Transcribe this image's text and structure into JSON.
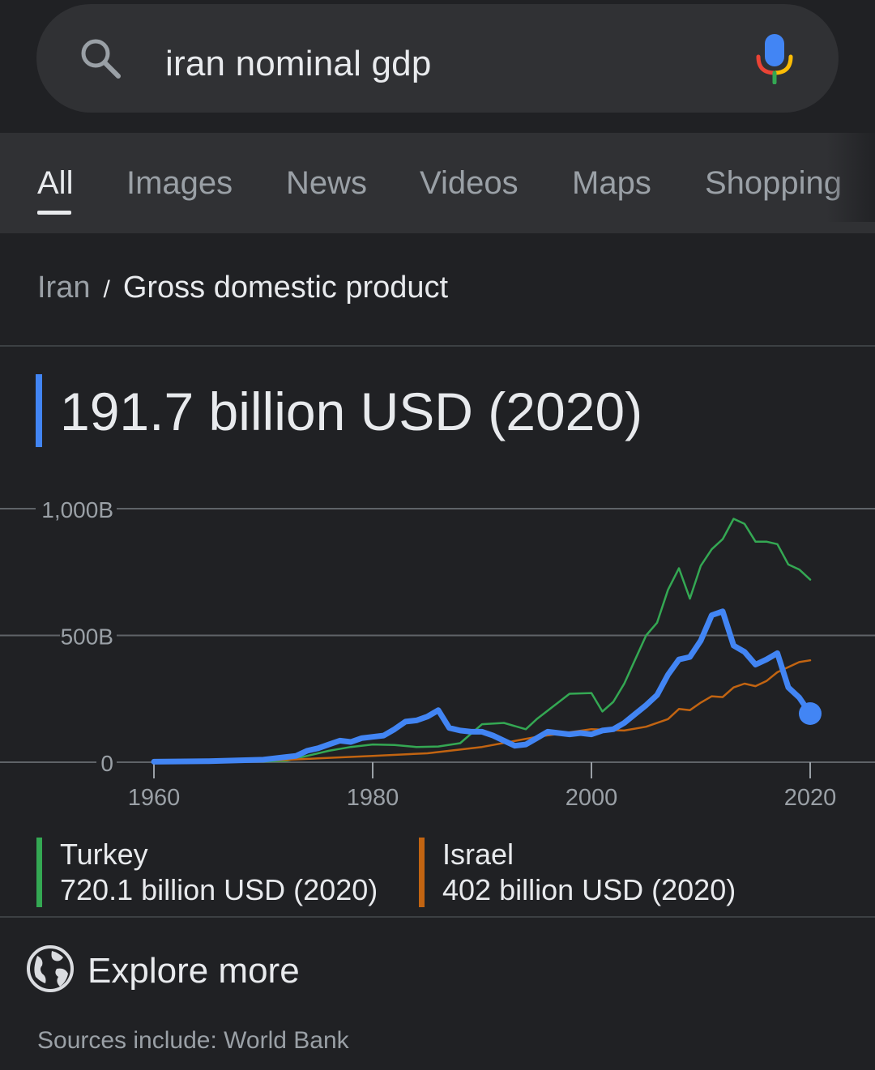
{
  "search": {
    "query": "iran nominal gdp"
  },
  "tabs": [
    {
      "label": "All"
    },
    {
      "label": "Images"
    },
    {
      "label": "News"
    },
    {
      "label": "Videos"
    },
    {
      "label": "Maps"
    },
    {
      "label": "Shopping"
    }
  ],
  "breadcrumb": {
    "parent": "Iran",
    "separator": "/",
    "current": "Gross domestic product"
  },
  "headline": {
    "value": "191.7 billion USD (2020)"
  },
  "colors": {
    "iran": "#4285f4",
    "turkey": "#34a853",
    "israel": "#c26411",
    "background": "#202124"
  },
  "chart_data": {
    "type": "line",
    "x_ticks": [
      "1960",
      "1980",
      "2000",
      "2020"
    ],
    "y_ticks": [
      "0",
      "500B",
      "1,000B"
    ],
    "xlim": [
      1960,
      2020
    ],
    "ylim": [
      0,
      1000
    ],
    "y_unit": "billion USD",
    "grid": true,
    "series": [
      {
        "name": "Turkey",
        "color": "#34a853",
        "points": [
          [
            1960,
            1
          ],
          [
            1965,
            2
          ],
          [
            1970,
            3
          ],
          [
            1972,
            5
          ],
          [
            1974,
            25
          ],
          [
            1976,
            45
          ],
          [
            1978,
            60
          ],
          [
            1980,
            70
          ],
          [
            1982,
            68
          ],
          [
            1984,
            60
          ],
          [
            1986,
            62
          ],
          [
            1988,
            75
          ],
          [
            1990,
            150
          ],
          [
            1992,
            155
          ],
          [
            1994,
            130
          ],
          [
            1995,
            170
          ],
          [
            1998,
            270
          ],
          [
            2000,
            273
          ],
          [
            2001,
            200
          ],
          [
            2002,
            238
          ],
          [
            2003,
            310
          ],
          [
            2004,
            405
          ],
          [
            2005,
            500
          ],
          [
            2006,
            550
          ],
          [
            2007,
            680
          ],
          [
            2008,
            765
          ],
          [
            2009,
            645
          ],
          [
            2010,
            775
          ],
          [
            2011,
            840
          ],
          [
            2012,
            880
          ],
          [
            2013,
            960
          ],
          [
            2014,
            940
          ],
          [
            2015,
            870
          ],
          [
            2016,
            870
          ],
          [
            2017,
            860
          ],
          [
            2018,
            780
          ],
          [
            2019,
            760
          ],
          [
            2020,
            720
          ]
        ]
      },
      {
        "name": "Israel",
        "color": "#c26411",
        "points": [
          [
            1960,
            1
          ],
          [
            1970,
            5
          ],
          [
            1975,
            15
          ],
          [
            1980,
            25
          ],
          [
            1985,
            35
          ],
          [
            1990,
            60
          ],
          [
            1995,
            100
          ],
          [
            2000,
            130
          ],
          [
            2003,
            125
          ],
          [
            2005,
            140
          ],
          [
            2007,
            170
          ],
          [
            2008,
            210
          ],
          [
            2009,
            205
          ],
          [
            2010,
            235
          ],
          [
            2011,
            260
          ],
          [
            2012,
            257
          ],
          [
            2013,
            295
          ],
          [
            2014,
            310
          ],
          [
            2015,
            300
          ],
          [
            2016,
            320
          ],
          [
            2017,
            355
          ],
          [
            2018,
            375
          ],
          [
            2019,
            395
          ],
          [
            2020,
            402
          ]
        ]
      },
      {
        "name": "Iran",
        "color": "#4285f4",
        "points": [
          [
            1960,
            2
          ],
          [
            1965,
            4
          ],
          [
            1970,
            10
          ],
          [
            1972,
            20
          ],
          [
            1973,
            25
          ],
          [
            1974,
            45
          ],
          [
            1975,
            55
          ],
          [
            1976,
            70
          ],
          [
            1977,
            85
          ],
          [
            1978,
            80
          ],
          [
            1979,
            95
          ],
          [
            1980,
            100
          ],
          [
            1981,
            105
          ],
          [
            1982,
            130
          ],
          [
            1983,
            160
          ],
          [
            1984,
            165
          ],
          [
            1985,
            180
          ],
          [
            1986,
            205
          ],
          [
            1987,
            135
          ],
          [
            1988,
            125
          ],
          [
            1989,
            120
          ],
          [
            1990,
            120
          ],
          [
            1991,
            105
          ],
          [
            1992,
            85
          ],
          [
            1993,
            65
          ],
          [
            1994,
            70
          ],
          [
            1995,
            95
          ],
          [
            1996,
            120
          ],
          [
            1997,
            115
          ],
          [
            1998,
            110
          ],
          [
            1999,
            115
          ],
          [
            2000,
            110
          ],
          [
            2001,
            125
          ],
          [
            2002,
            130
          ],
          [
            2003,
            155
          ],
          [
            2004,
            190
          ],
          [
            2005,
            225
          ],
          [
            2006,
            265
          ],
          [
            2007,
            345
          ],
          [
            2008,
            405
          ],
          [
            2009,
            415
          ],
          [
            2010,
            480
          ],
          [
            2011,
            580
          ],
          [
            2012,
            595
          ],
          [
            2013,
            460
          ],
          [
            2014,
            435
          ],
          [
            2015,
            385
          ],
          [
            2016,
            405
          ],
          [
            2017,
            430
          ],
          [
            2018,
            295
          ],
          [
            2019,
            255
          ],
          [
            2020,
            191.7
          ]
        ]
      }
    ]
  },
  "legend": [
    {
      "name": "Turkey",
      "value": "720.1 billion USD (2020)"
    },
    {
      "name": "Israel",
      "value": "402 billion USD (2020)"
    }
  ],
  "explore": {
    "label": "Explore more"
  },
  "sources": {
    "prefix": "Sources include: ",
    "link": "World Bank"
  }
}
